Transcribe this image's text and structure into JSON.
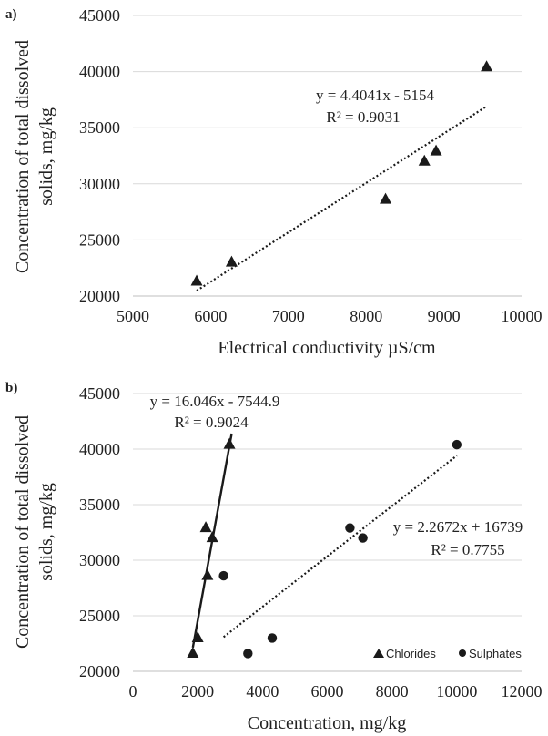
{
  "chart_data": [
    {
      "panel": "a)",
      "type": "scatter",
      "xlabel": "Electrical conductivity µS/cm",
      "ylabel_lines": [
        "Concentration of total dissolved",
        "solids, mg/kg"
      ],
      "xlim": [
        5000,
        10000
      ],
      "ylim": [
        20000,
        45000
      ],
      "xticks": [
        5000,
        6000,
        7000,
        8000,
        9000,
        10000
      ],
      "yticks": [
        20000,
        25000,
        30000,
        35000,
        40000,
        45000
      ],
      "grid": "horizontal",
      "series": [
        {
          "marker": "triangle",
          "color": "#1a1a1a",
          "points": [
            [
              5820,
              21300
            ],
            [
              6270,
              23000
            ],
            [
              8250,
              28600
            ],
            [
              8750,
              32000
            ],
            [
              8900,
              32900
            ],
            [
              9550,
              40400
            ]
          ],
          "trendline": {
            "style": "dotted",
            "slope": 4.4041,
            "intercept": -5154,
            "x_range": [
              5820,
              9550
            ]
          },
          "equation": "y = 4.4041x - 5154",
          "r2": "R² = 0.9031"
        }
      ]
    },
    {
      "panel": "b)",
      "type": "scatter",
      "xlabel": "Concentration, mg/kg",
      "ylabel_lines": [
        "Concentration of total dissolved",
        "solids, mg/kg"
      ],
      "xlim": [
        0,
        12000
      ],
      "ylim": [
        20000,
        45000
      ],
      "xticks": [
        0,
        2000,
        4000,
        6000,
        8000,
        10000,
        12000
      ],
      "yticks": [
        20000,
        25000,
        30000,
        35000,
        40000,
        45000
      ],
      "grid": "horizontal",
      "legend_position": "bottom-right",
      "series": [
        {
          "name": "Chlorides",
          "marker": "triangle",
          "color": "#1a1a1a",
          "points": [
            [
              1850,
              21600
            ],
            [
              2000,
              23000
            ],
            [
              2250,
              32900
            ],
            [
              2300,
              28600
            ],
            [
              2450,
              32000
            ],
            [
              2980,
              40400
            ]
          ],
          "trendline": {
            "style": "solid",
            "slope": 16.046,
            "intercept": -7544.9,
            "x_range": [
              1850,
              3050
            ]
          },
          "equation": "y = 16.046x - 7544.9",
          "r2": "R² = 0.9024"
        },
        {
          "name": "Sulphates",
          "marker": "circle",
          "color": "#1a1a1a",
          "points": [
            [
              2800,
              28600
            ],
            [
              3550,
              21600
            ],
            [
              4300,
              23000
            ],
            [
              6700,
              32900
            ],
            [
              7100,
              32000
            ],
            [
              10000,
              40400
            ]
          ],
          "trendline": {
            "style": "dotted",
            "slope": 2.2672,
            "intercept": 16739,
            "x_range": [
              2800,
              10000
            ]
          },
          "equation": "y = 2.2672x + 16739",
          "r2": "R² = 0.7755"
        }
      ]
    }
  ]
}
